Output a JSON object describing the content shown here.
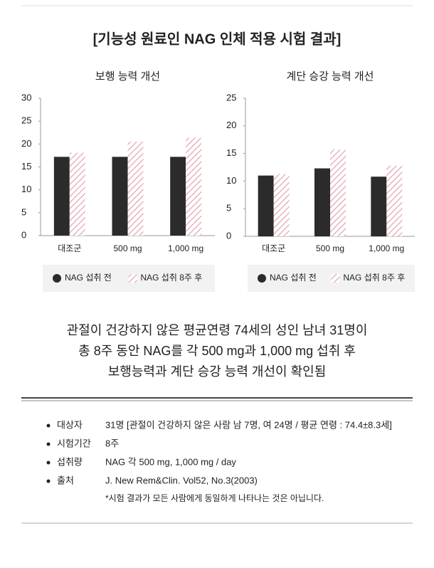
{
  "title": "[기능성 원료인 NAG 인체 적용 시험 결과]",
  "chart_data": [
    {
      "type": "bar",
      "title": "보행 능력 개선",
      "categories": [
        "대조군",
        "500 mg",
        "1,000 mg"
      ],
      "series": [
        {
          "name": "NAG 섭취 전",
          "color": "#2b2b2b",
          "values": [
            17.2,
            17.2,
            17.2
          ]
        },
        {
          "name": "NAG 섭취 8주 후",
          "color": "#e3a6b0",
          "pattern": "hatch",
          "values": [
            18.1,
            20.5,
            21.4
          ]
        }
      ],
      "ylim": [
        0,
        30
      ],
      "yticks": [
        0,
        5,
        10,
        15,
        20,
        25,
        30
      ]
    },
    {
      "type": "bar",
      "title": "계단 승강 능력 개선",
      "categories": [
        "대조군",
        "500 mg",
        "1,000 mg"
      ],
      "series": [
        {
          "name": "NAG 섭취 전",
          "color": "#2b2b2b",
          "values": [
            11,
            12.3,
            10.8
          ]
        },
        {
          "name": "NAG 섭취 8주 후",
          "color": "#e3a6b0",
          "pattern": "hatch",
          "values": [
            11.3,
            15.7,
            12.8
          ]
        }
      ],
      "ylim": [
        0,
        25
      ],
      "yticks": [
        0,
        5,
        10,
        15,
        20,
        25
      ]
    }
  ],
  "summary": [
    "관절이 건강하지 않은 평균연령 74세의 성인 남녀 31명이",
    "총 8주 동안 NAG를 각 500 mg과 1,000 mg 섭취 후",
    "보행능력과 계단 승강 능력 개선이 확인됨"
  ],
  "details": [
    {
      "label": "대상자",
      "value": "31명 [관절이 건강하지 않은 사람 남 7명, 여 24명 / 평균 연령 : 74.4±8.3세]"
    },
    {
      "label": "시험기간",
      "value": "8주"
    },
    {
      "label": "섭취량",
      "value": "NAG 각 500 mg, 1,000 mg / day"
    },
    {
      "label": "출처",
      "value": "J. New Rem&Clin. Vol52, No.3(2003)"
    }
  ],
  "note": "*시험 결과가 모든 사람에게 동일하게 나타나는 것은 아닙니다."
}
